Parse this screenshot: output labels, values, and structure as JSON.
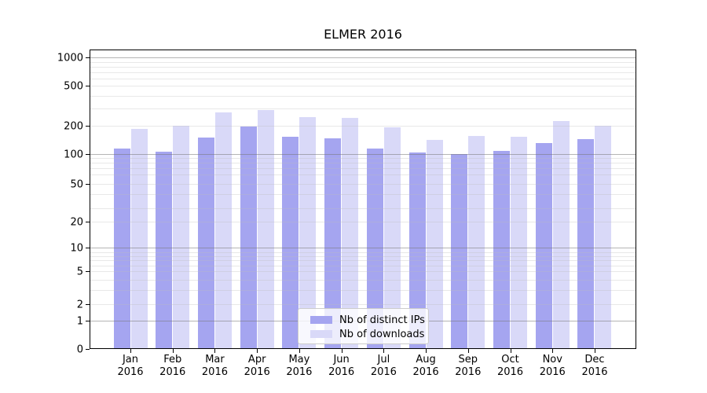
{
  "chart_data": {
    "type": "bar",
    "title": "ELMER 2016",
    "categories": [
      {
        "month": "Jan",
        "year": "2016"
      },
      {
        "month": "Feb",
        "year": "2016"
      },
      {
        "month": "Mar",
        "year": "2016"
      },
      {
        "month": "Apr",
        "year": "2016"
      },
      {
        "month": "May",
        "year": "2016"
      },
      {
        "month": "Jun",
        "year": "2016"
      },
      {
        "month": "Jul",
        "year": "2016"
      },
      {
        "month": "Aug",
        "year": "2016"
      },
      {
        "month": "Sep",
        "year": "2016"
      },
      {
        "month": "Oct",
        "year": "2016"
      },
      {
        "month": "Nov",
        "year": "2016"
      },
      {
        "month": "Dec",
        "year": "2016"
      }
    ],
    "series": [
      {
        "name": "Nb of distinct IPs",
        "color": "#a5a5f0",
        "values": [
          114,
          105,
          148,
          197,
          153,
          145,
          113,
          102,
          100,
          108,
          130,
          143
        ]
      },
      {
        "name": "Nb of downloads",
        "color": "#d9d9f8",
        "values": [
          183,
          199,
          272,
          289,
          245,
          240,
          193,
          140,
          154,
          151,
          224,
          198
        ]
      }
    ],
    "y_axis": {
      "scale": "symlog",
      "ticks": [
        1000,
        500,
        200,
        100,
        50,
        20,
        10,
        5,
        2,
        1,
        0
      ],
      "ylim": [
        0,
        1200
      ]
    },
    "grid": {
      "major_values": [
        1,
        10,
        100,
        1000
      ],
      "minor_values": [
        2,
        3,
        4,
        5,
        6,
        7,
        8,
        9,
        20,
        30,
        40,
        50,
        60,
        70,
        80,
        90,
        200,
        300,
        400,
        500,
        600,
        700,
        800,
        900
      ]
    },
    "legend": {
      "position": "lower center"
    }
  }
}
